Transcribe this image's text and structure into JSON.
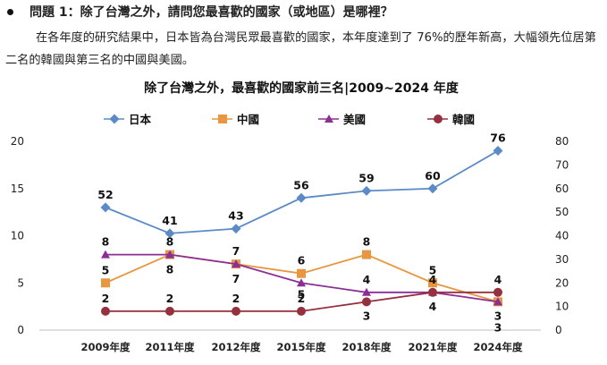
{
  "question": {
    "text": "問題 1：除了台灣之外，請問您最喜歡的國家（或地區）是哪裡？"
  },
  "description": {
    "text": "在各年度的研究結果中，日本皆為台灣民眾最喜歡的國家，本年度達到了 76%的歷年新高，大幅領先位居第二名的韓國與第三名的中國與美國。"
  },
  "chart_data": {
    "type": "line",
    "title": "除了台灣之外，最喜歡的國家前三名|2009~2024 年度",
    "categories": [
      "2009年度",
      "2011年度",
      "2012年度",
      "2015年度",
      "2018年度",
      "2021年度",
      "2024年度"
    ],
    "left_axis": {
      "range": [
        0,
        20
      ],
      "ticks": [
        "0",
        "5",
        "10",
        "15",
        "20"
      ]
    },
    "right_axis": {
      "range": [
        0,
        80
      ],
      "ticks": [
        "0",
        "10",
        "20",
        "30",
        "40",
        "50",
        "60",
        "70",
        "80"
      ]
    },
    "legend_position": "top",
    "series": [
      {
        "name": "日本",
        "axis": "right",
        "color": "#5b8bc7",
        "marker": "diamond",
        "values": [
          52,
          41,
          43,
          56,
          59,
          60,
          76
        ],
        "labels": [
          "52",
          "41",
          "43",
          "56",
          "59",
          "60",
          "76"
        ]
      },
      {
        "name": "中國",
        "axis": "left",
        "color": "#e8963f",
        "marker": "square",
        "values": [
          5,
          8,
          7,
          6,
          8,
          5,
          3
        ],
        "labels": [
          "5",
          "8",
          "7",
          "6",
          "8",
          "5",
          "3"
        ]
      },
      {
        "name": "美國",
        "axis": "left",
        "color": "#8b2f94",
        "marker": "triangle",
        "values": [
          8,
          8,
          7,
          5,
          4,
          4,
          3
        ],
        "labels": [
          "8",
          "8",
          "7",
          "5",
          "4",
          "4",
          "3"
        ]
      },
      {
        "name": "韓國",
        "axis": "left",
        "color": "#95313f",
        "marker": "circle",
        "values": [
          2,
          2,
          2,
          2,
          3,
          4,
          4
        ],
        "labels": [
          "2",
          "2",
          "2",
          "2",
          "3",
          "4",
          "4"
        ]
      }
    ]
  }
}
